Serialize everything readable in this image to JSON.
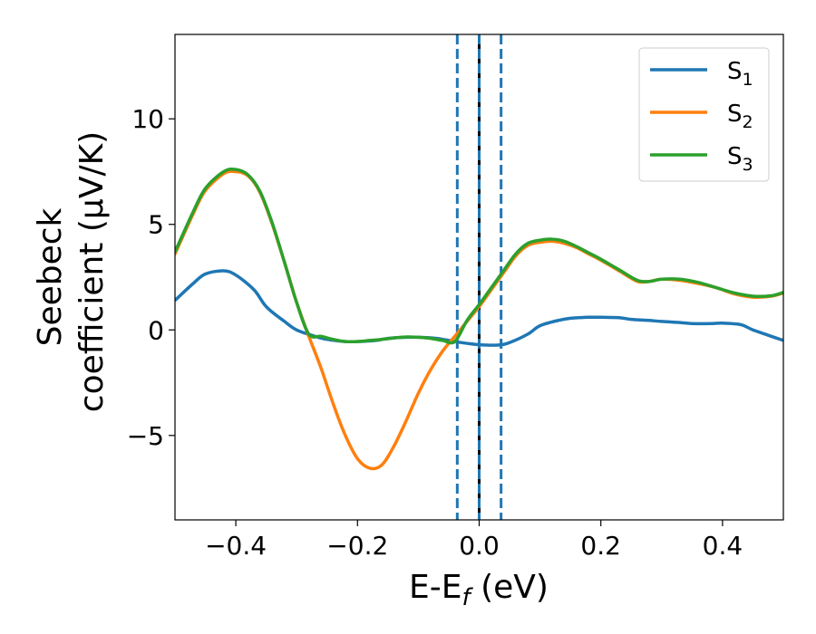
{
  "chart_data": {
    "type": "line",
    "xlabel": "E-E",
    "xlabel_sub": "f",
    "xlabel_unit": " (eV)",
    "ylabel_line1": "Seebeck",
    "ylabel_line2": "coefficient  (μV/K)",
    "xlim": [
      -0.5,
      0.5
    ],
    "ylim": [
      -9,
      14
    ],
    "xticks": [
      -0.4,
      -0.2,
      0.0,
      0.2,
      0.4
    ],
    "xtick_labels": [
      "−0.4",
      "−0.2",
      "0.0",
      "0.2",
      "0.4"
    ],
    "yticks": [
      -5,
      0,
      5,
      10
    ],
    "ytick_labels": [
      "−5",
      "0",
      "5",
      "10"
    ],
    "grid": false,
    "legend_position": "top-right",
    "vlines": [
      {
        "x": 0.0,
        "color": "#000000",
        "style": "solid"
      },
      {
        "x": -0.036,
        "color": "#1f77b4",
        "style": "dashed"
      },
      {
        "x": 0.0,
        "color": "#1f77b4",
        "style": "dashed"
      },
      {
        "x": 0.036,
        "color": "#1f77b4",
        "style": "dashed"
      }
    ],
    "series": [
      {
        "name": "S",
        "sub": "1",
        "color": "#1f77b4",
        "x": [
          -0.5,
          -0.47,
          -0.45,
          -0.42,
          -0.4,
          -0.37,
          -0.35,
          -0.32,
          -0.3,
          -0.27,
          -0.25,
          -0.22,
          -0.2,
          -0.17,
          -0.15,
          -0.12,
          -0.1,
          -0.07,
          -0.05,
          -0.03,
          0.0,
          0.03,
          0.05,
          0.08,
          0.1,
          0.13,
          0.15,
          0.18,
          0.2,
          0.23,
          0.25,
          0.28,
          0.3,
          0.33,
          0.35,
          0.38,
          0.4,
          0.43,
          0.45,
          0.48,
          0.5
        ],
        "y": [
          1.4,
          2.2,
          2.65,
          2.8,
          2.6,
          1.9,
          1.1,
          0.4,
          0.0,
          -0.3,
          -0.45,
          -0.55,
          -0.55,
          -0.5,
          -0.4,
          -0.35,
          -0.35,
          -0.4,
          -0.5,
          -0.6,
          -0.7,
          -0.72,
          -0.6,
          -0.2,
          0.2,
          0.45,
          0.55,
          0.6,
          0.6,
          0.58,
          0.5,
          0.45,
          0.4,
          0.35,
          0.3,
          0.3,
          0.32,
          0.25,
          0.0,
          -0.3,
          -0.5
        ]
      },
      {
        "name": "S",
        "sub": "2",
        "color": "#ff7f0e",
        "x": [
          -0.5,
          -0.47,
          -0.45,
          -0.42,
          -0.4,
          -0.38,
          -0.36,
          -0.34,
          -0.32,
          -0.3,
          -0.28,
          -0.26,
          -0.24,
          -0.22,
          -0.2,
          -0.18,
          -0.16,
          -0.14,
          -0.12,
          -0.1,
          -0.08,
          -0.06,
          -0.04,
          -0.02,
          0.0,
          0.02,
          0.04,
          0.06,
          0.08,
          0.1,
          0.12,
          0.14,
          0.16,
          0.18,
          0.2,
          0.23,
          0.26,
          0.28,
          0.3,
          0.33,
          0.36,
          0.39,
          0.42,
          0.45,
          0.48,
          0.5
        ],
        "y": [
          3.6,
          5.5,
          6.6,
          7.4,
          7.5,
          7.3,
          6.5,
          5.0,
          3.2,
          1.3,
          -0.3,
          -1.8,
          -3.5,
          -5.0,
          -6.1,
          -6.55,
          -6.4,
          -5.5,
          -4.3,
          -3.0,
          -1.9,
          -1.0,
          -0.3,
          0.4,
          1.1,
          1.9,
          2.7,
          3.5,
          4.0,
          4.15,
          4.2,
          4.1,
          3.9,
          3.6,
          3.3,
          2.8,
          2.3,
          2.3,
          2.4,
          2.35,
          2.2,
          2.0,
          1.7,
          1.55,
          1.6,
          1.75
        ]
      },
      {
        "name": "S",
        "sub": "3",
        "color": "#2ca02c",
        "x": [
          -0.5,
          -0.47,
          -0.45,
          -0.42,
          -0.4,
          -0.38,
          -0.36,
          -0.34,
          -0.32,
          -0.3,
          -0.28,
          -0.26,
          -0.24,
          -0.22,
          -0.2,
          -0.18,
          -0.16,
          -0.14,
          -0.12,
          -0.1,
          -0.08,
          -0.06,
          -0.04,
          -0.02,
          0.0,
          0.02,
          0.04,
          0.06,
          0.08,
          0.1,
          0.12,
          0.14,
          0.16,
          0.18,
          0.2,
          0.23,
          0.26,
          0.28,
          0.3,
          0.33,
          0.36,
          0.39,
          0.42,
          0.45,
          0.48,
          0.5
        ],
        "y": [
          3.7,
          5.6,
          6.7,
          7.5,
          7.6,
          7.35,
          6.55,
          5.05,
          3.2,
          1.3,
          -0.2,
          -0.3,
          -0.45,
          -0.55,
          -0.55,
          -0.5,
          -0.45,
          -0.38,
          -0.33,
          -0.35,
          -0.4,
          -0.5,
          -0.55,
          0.45,
          1.2,
          2.0,
          2.8,
          3.6,
          4.1,
          4.25,
          4.3,
          4.2,
          3.95,
          3.65,
          3.35,
          2.85,
          2.35,
          2.3,
          2.4,
          2.4,
          2.25,
          2.0,
          1.75,
          1.6,
          1.62,
          1.78
        ]
      }
    ]
  }
}
